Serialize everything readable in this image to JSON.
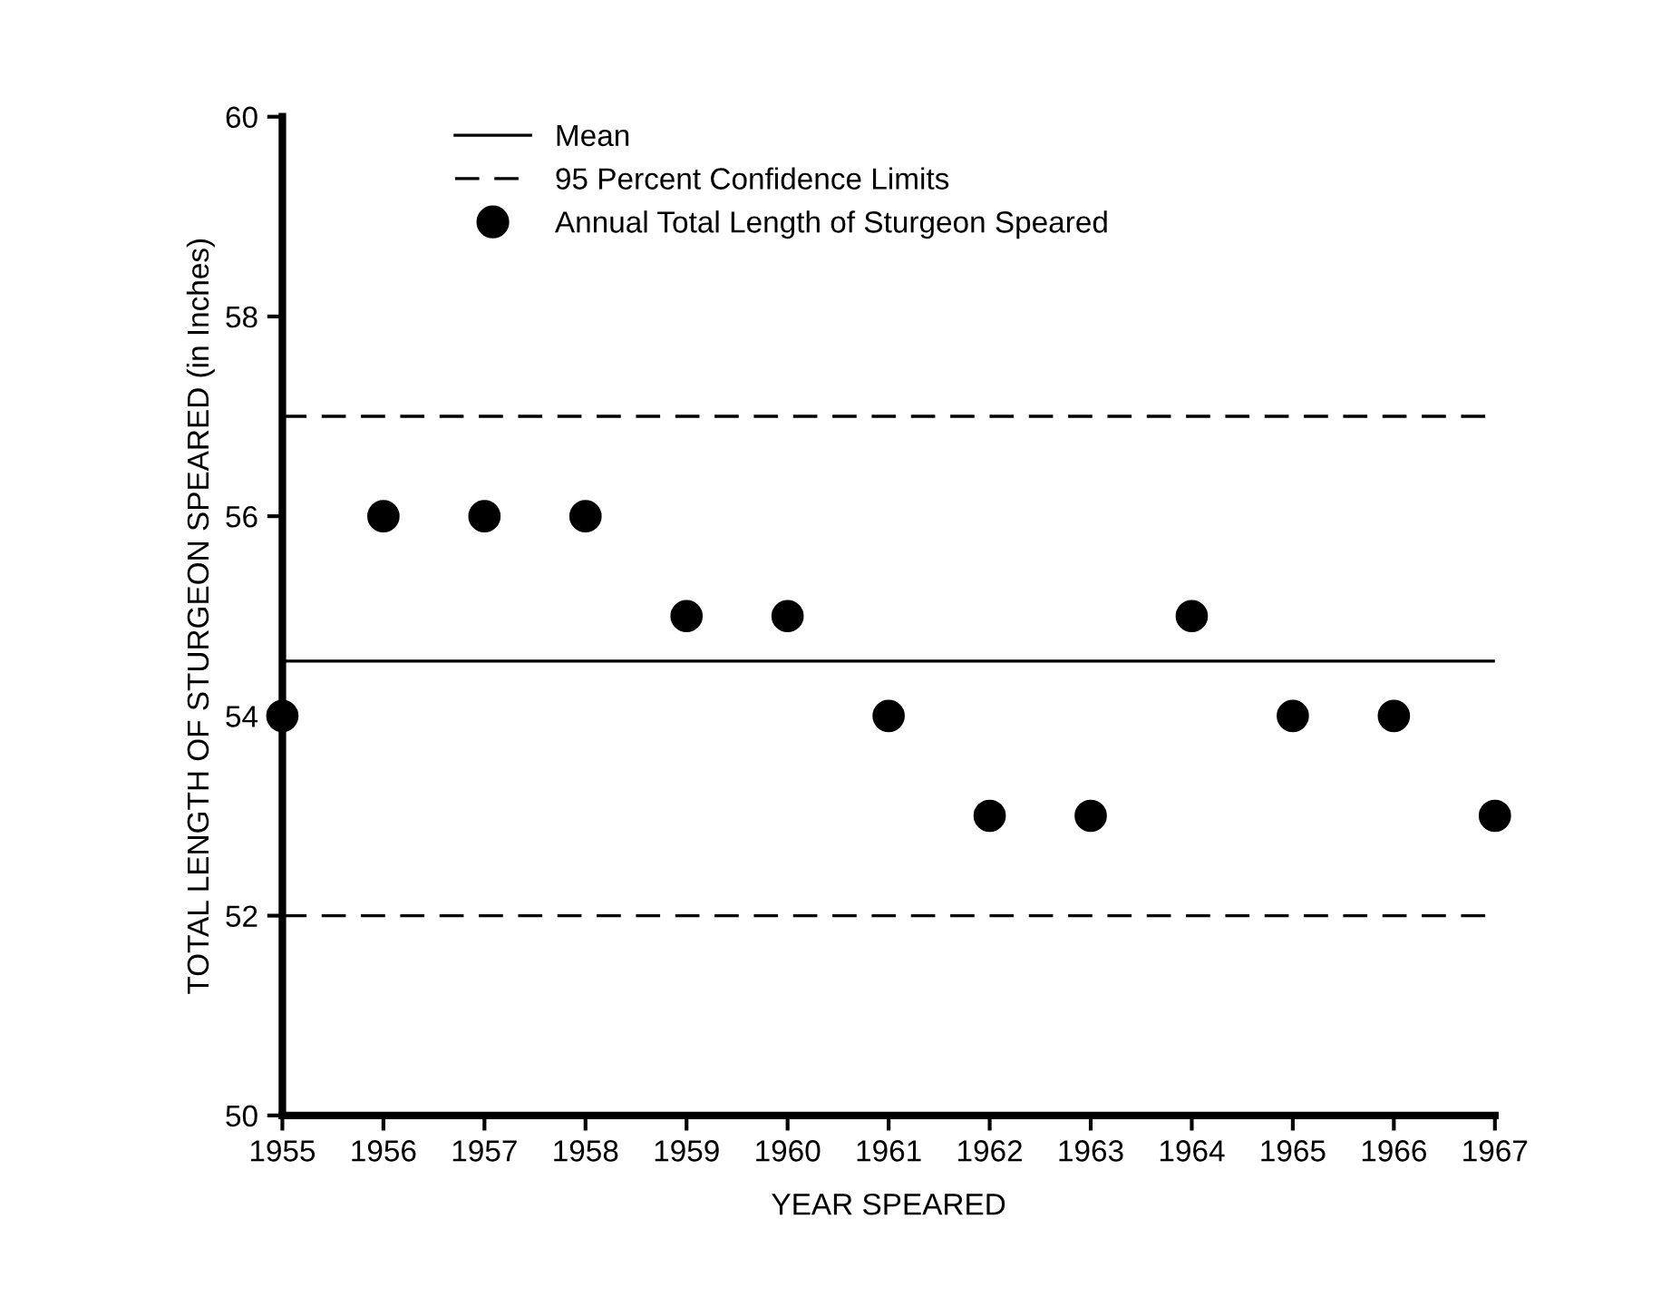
{
  "chart_data": {
    "type": "scatter",
    "xlabel": "YEAR SPEARED",
    "ylabel": "TOTAL LENGTH OF STURGEON SPEARED (in Inches)",
    "x": [
      1955,
      1956,
      1957,
      1958,
      1959,
      1960,
      1961,
      1962,
      1963,
      1964,
      1965,
      1966,
      1967
    ],
    "series": [
      {
        "name": "Annual Total Length of Sturgeon Speared",
        "color": "#000000",
        "values": [
          54,
          56,
          56,
          56,
          55,
          55,
          54,
          53,
          53,
          55,
          54,
          54,
          53
        ]
      }
    ],
    "ref_lines": [
      {
        "axis": "y",
        "value": 54.55,
        "label": "Mean",
        "line_style": "solid",
        "color": "#000000"
      },
      {
        "axis": "y",
        "value": 57,
        "label": "95 Percent Confidence Limits",
        "line_style": "dashed",
        "color": "#000000"
      },
      {
        "axis": "y",
        "value": 52,
        "line_style": "dashed",
        "color": "#000000"
      }
    ],
    "xlim": [
      1955,
      1967
    ],
    "xticks": [
      1955,
      1956,
      1957,
      1958,
      1959,
      1960,
      1961,
      1962,
      1963,
      1964,
      1965,
      1966,
      1967
    ],
    "ylim": [
      50,
      60
    ],
    "yticks": [
      50,
      52,
      54,
      56,
      58,
      60
    ],
    "marker": "circle",
    "grid": false,
    "legend": "top left"
  }
}
